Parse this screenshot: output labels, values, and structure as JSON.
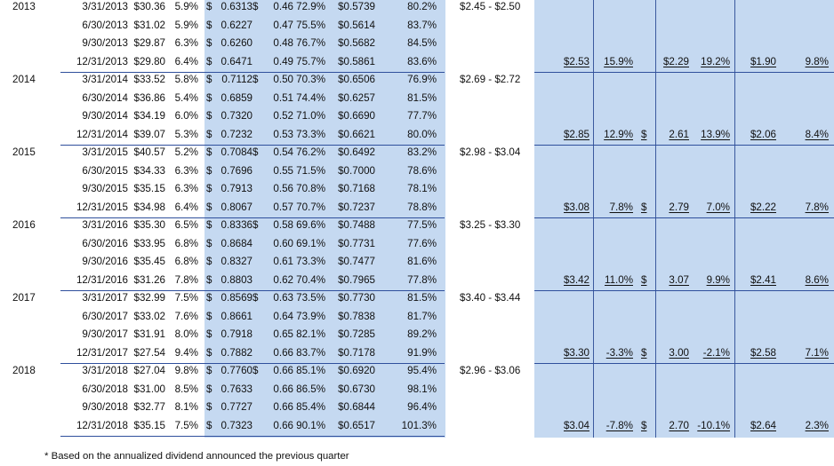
{
  "years": [
    {
      "year": "2013",
      "range": "$2.45 - $2.50",
      "quarters": [
        [
          "3/31/2013",
          "$30.36",
          "5.9%",
          "$",
          "0.6313",
          "$",
          "0.46",
          "72.9%",
          "$0.5739",
          "80.2%"
        ],
        [
          "6/30/2013",
          "$31.02",
          "5.9%",
          "$",
          "0.6227",
          "",
          "0.47",
          "75.5%",
          "$0.5614",
          "83.7%"
        ],
        [
          "9/30/2013",
          "$29.87",
          "6.3%",
          "$",
          "0.6260",
          "",
          "0.48",
          "76.7%",
          "$0.5682",
          "84.5%"
        ],
        [
          "12/31/2013",
          "$29.80",
          "6.4%",
          "$",
          "0.6471",
          "",
          "0.49",
          "75.7%",
          "$0.5861",
          "83.6%"
        ]
      ],
      "summary": {
        "v1": "$2.53",
        "p1": "15.9%",
        "d2": "",
        "v2": "$2.29",
        "p2": "19.2%",
        "v3": "$1.90",
        "p3": "9.8%"
      }
    },
    {
      "year": "2014",
      "range": "$2.69 - $2.72",
      "quarters": [
        [
          "3/31/2014",
          "$33.52",
          "5.8%",
          "$",
          "0.7112",
          "$",
          "0.50",
          "70.3%",
          "$0.6506",
          "76.9%"
        ],
        [
          "6/30/2014",
          "$36.86",
          "5.4%",
          "$",
          "0.6859",
          "",
          "0.51",
          "74.4%",
          "$0.6257",
          "81.5%"
        ],
        [
          "9/30/2014",
          "$34.19",
          "6.0%",
          "$",
          "0.7320",
          "",
          "0.52",
          "71.0%",
          "$0.6690",
          "77.7%"
        ],
        [
          "12/31/2014",
          "$39.07",
          "5.3%",
          "$",
          "0.7232",
          "",
          "0.53",
          "73.3%",
          "$0.6621",
          "80.0%"
        ]
      ],
      "summary": {
        "v1": "$2.85",
        "p1": "12.9%",
        "d2": "$",
        "v2": "2.61",
        "p2": "13.9%",
        "v3": "$2.06",
        "p3": "8.4%"
      }
    },
    {
      "year": "2015",
      "range": "$2.98 - $3.04",
      "quarters": [
        [
          "3/31/2015",
          "$40.57",
          "5.2%",
          "$",
          "0.7084",
          "$",
          "0.54",
          "76.2%",
          "$0.6492",
          "83.2%"
        ],
        [
          "6/30/2015",
          "$34.33",
          "6.3%",
          "$",
          "0.7696",
          "",
          "0.55",
          "71.5%",
          "$0.7000",
          "78.6%"
        ],
        [
          "9/30/2015",
          "$35.15",
          "6.3%",
          "$",
          "0.7913",
          "",
          "0.56",
          "70.8%",
          "$0.7168",
          "78.1%"
        ],
        [
          "12/31/2015",
          "$34.98",
          "6.4%",
          "$",
          "0.8067",
          "",
          "0.57",
          "70.7%",
          "$0.7237",
          "78.8%"
        ]
      ],
      "summary": {
        "v1": "$3.08",
        "p1": "7.8%",
        "d2": "$",
        "v2": "2.79",
        "p2": "7.0%",
        "v3": "$2.22",
        "p3": "7.8%"
      }
    },
    {
      "year": "2016",
      "range": "$3.25 - $3.30",
      "quarters": [
        [
          "3/31/2016",
          "$35.30",
          "6.5%",
          "$",
          "0.8336",
          "$",
          "0.58",
          "69.6%",
          "$0.7488",
          "77.5%"
        ],
        [
          "6/30/2016",
          "$33.95",
          "6.8%",
          "$",
          "0.8684",
          "",
          "0.60",
          "69.1%",
          "$0.7731",
          "77.6%"
        ],
        [
          "9/30/2016",
          "$35.45",
          "6.8%",
          "$",
          "0.8327",
          "",
          "0.61",
          "73.3%",
          "$0.7477",
          "81.6%"
        ],
        [
          "12/31/2016",
          "$31.26",
          "7.8%",
          "$",
          "0.8803",
          "",
          "0.62",
          "70.4%",
          "$0.7965",
          "77.8%"
        ]
      ],
      "summary": {
        "v1": "$3.42",
        "p1": "11.0%",
        "d2": "$",
        "v2": "3.07",
        "p2": "9.9%",
        "v3": "$2.41",
        "p3": "8.6%"
      }
    },
    {
      "year": "2017",
      "range": "$3.40 - $3.44",
      "quarters": [
        [
          "3/31/2017",
          "$32.99",
          "7.5%",
          "$",
          "0.8569",
          "$",
          "0.63",
          "73.5%",
          "$0.7730",
          "81.5%"
        ],
        [
          "6/30/2017",
          "$33.02",
          "7.6%",
          "$",
          "0.8661",
          "",
          "0.64",
          "73.9%",
          "$0.7838",
          "81.7%"
        ],
        [
          "9/30/2017",
          "$31.91",
          "8.0%",
          "$",
          "0.7918",
          "",
          "0.65",
          "82.1%",
          "$0.7285",
          "89.2%"
        ],
        [
          "12/31/2017",
          "$27.54",
          "9.4%",
          "$",
          "0.7882",
          "",
          "0.66",
          "83.7%",
          "$0.7178",
          "91.9%"
        ]
      ],
      "summary": {
        "v1": "$3.30",
        "p1": "-3.3%",
        "d2": "$",
        "v2": "3.00",
        "p2": "-2.1%",
        "v3": "$2.58",
        "p3": "7.1%"
      }
    },
    {
      "year": "2018",
      "range": "$2.96 - $3.06",
      "quarters": [
        [
          "3/31/2018",
          "$27.04",
          "9.8%",
          "$",
          "0.7760",
          "$",
          "0.66",
          "85.1%",
          "$0.6920",
          "95.4%"
        ],
        [
          "6/30/2018",
          "$31.00",
          "8.5%",
          "$",
          "0.7633",
          "",
          "0.66",
          "86.5%",
          "$0.6730",
          "98.1%"
        ],
        [
          "9/30/2018",
          "$32.77",
          "8.1%",
          "$",
          "0.7727",
          "",
          "0.66",
          "85.4%",
          "$0.6844",
          "96.4%"
        ],
        [
          "12/31/2018",
          "$35.15",
          "7.5%",
          "$",
          "0.7323",
          "",
          "0.66",
          "90.1%",
          "$0.6517",
          "101.3%"
        ]
      ],
      "summary": {
        "v1": "$3.04",
        "p1": "-7.8%",
        "d2": "$",
        "v2": "2.70",
        "p2": "-10.1%",
        "v3": "$2.64",
        "p3": "2.3%"
      }
    }
  ],
  "footnote": "*  Based on the annualized dividend announced the previous quarter",
  "colors": {
    "band": "#c5d9f1",
    "rule": "#2f4f9c"
  }
}
